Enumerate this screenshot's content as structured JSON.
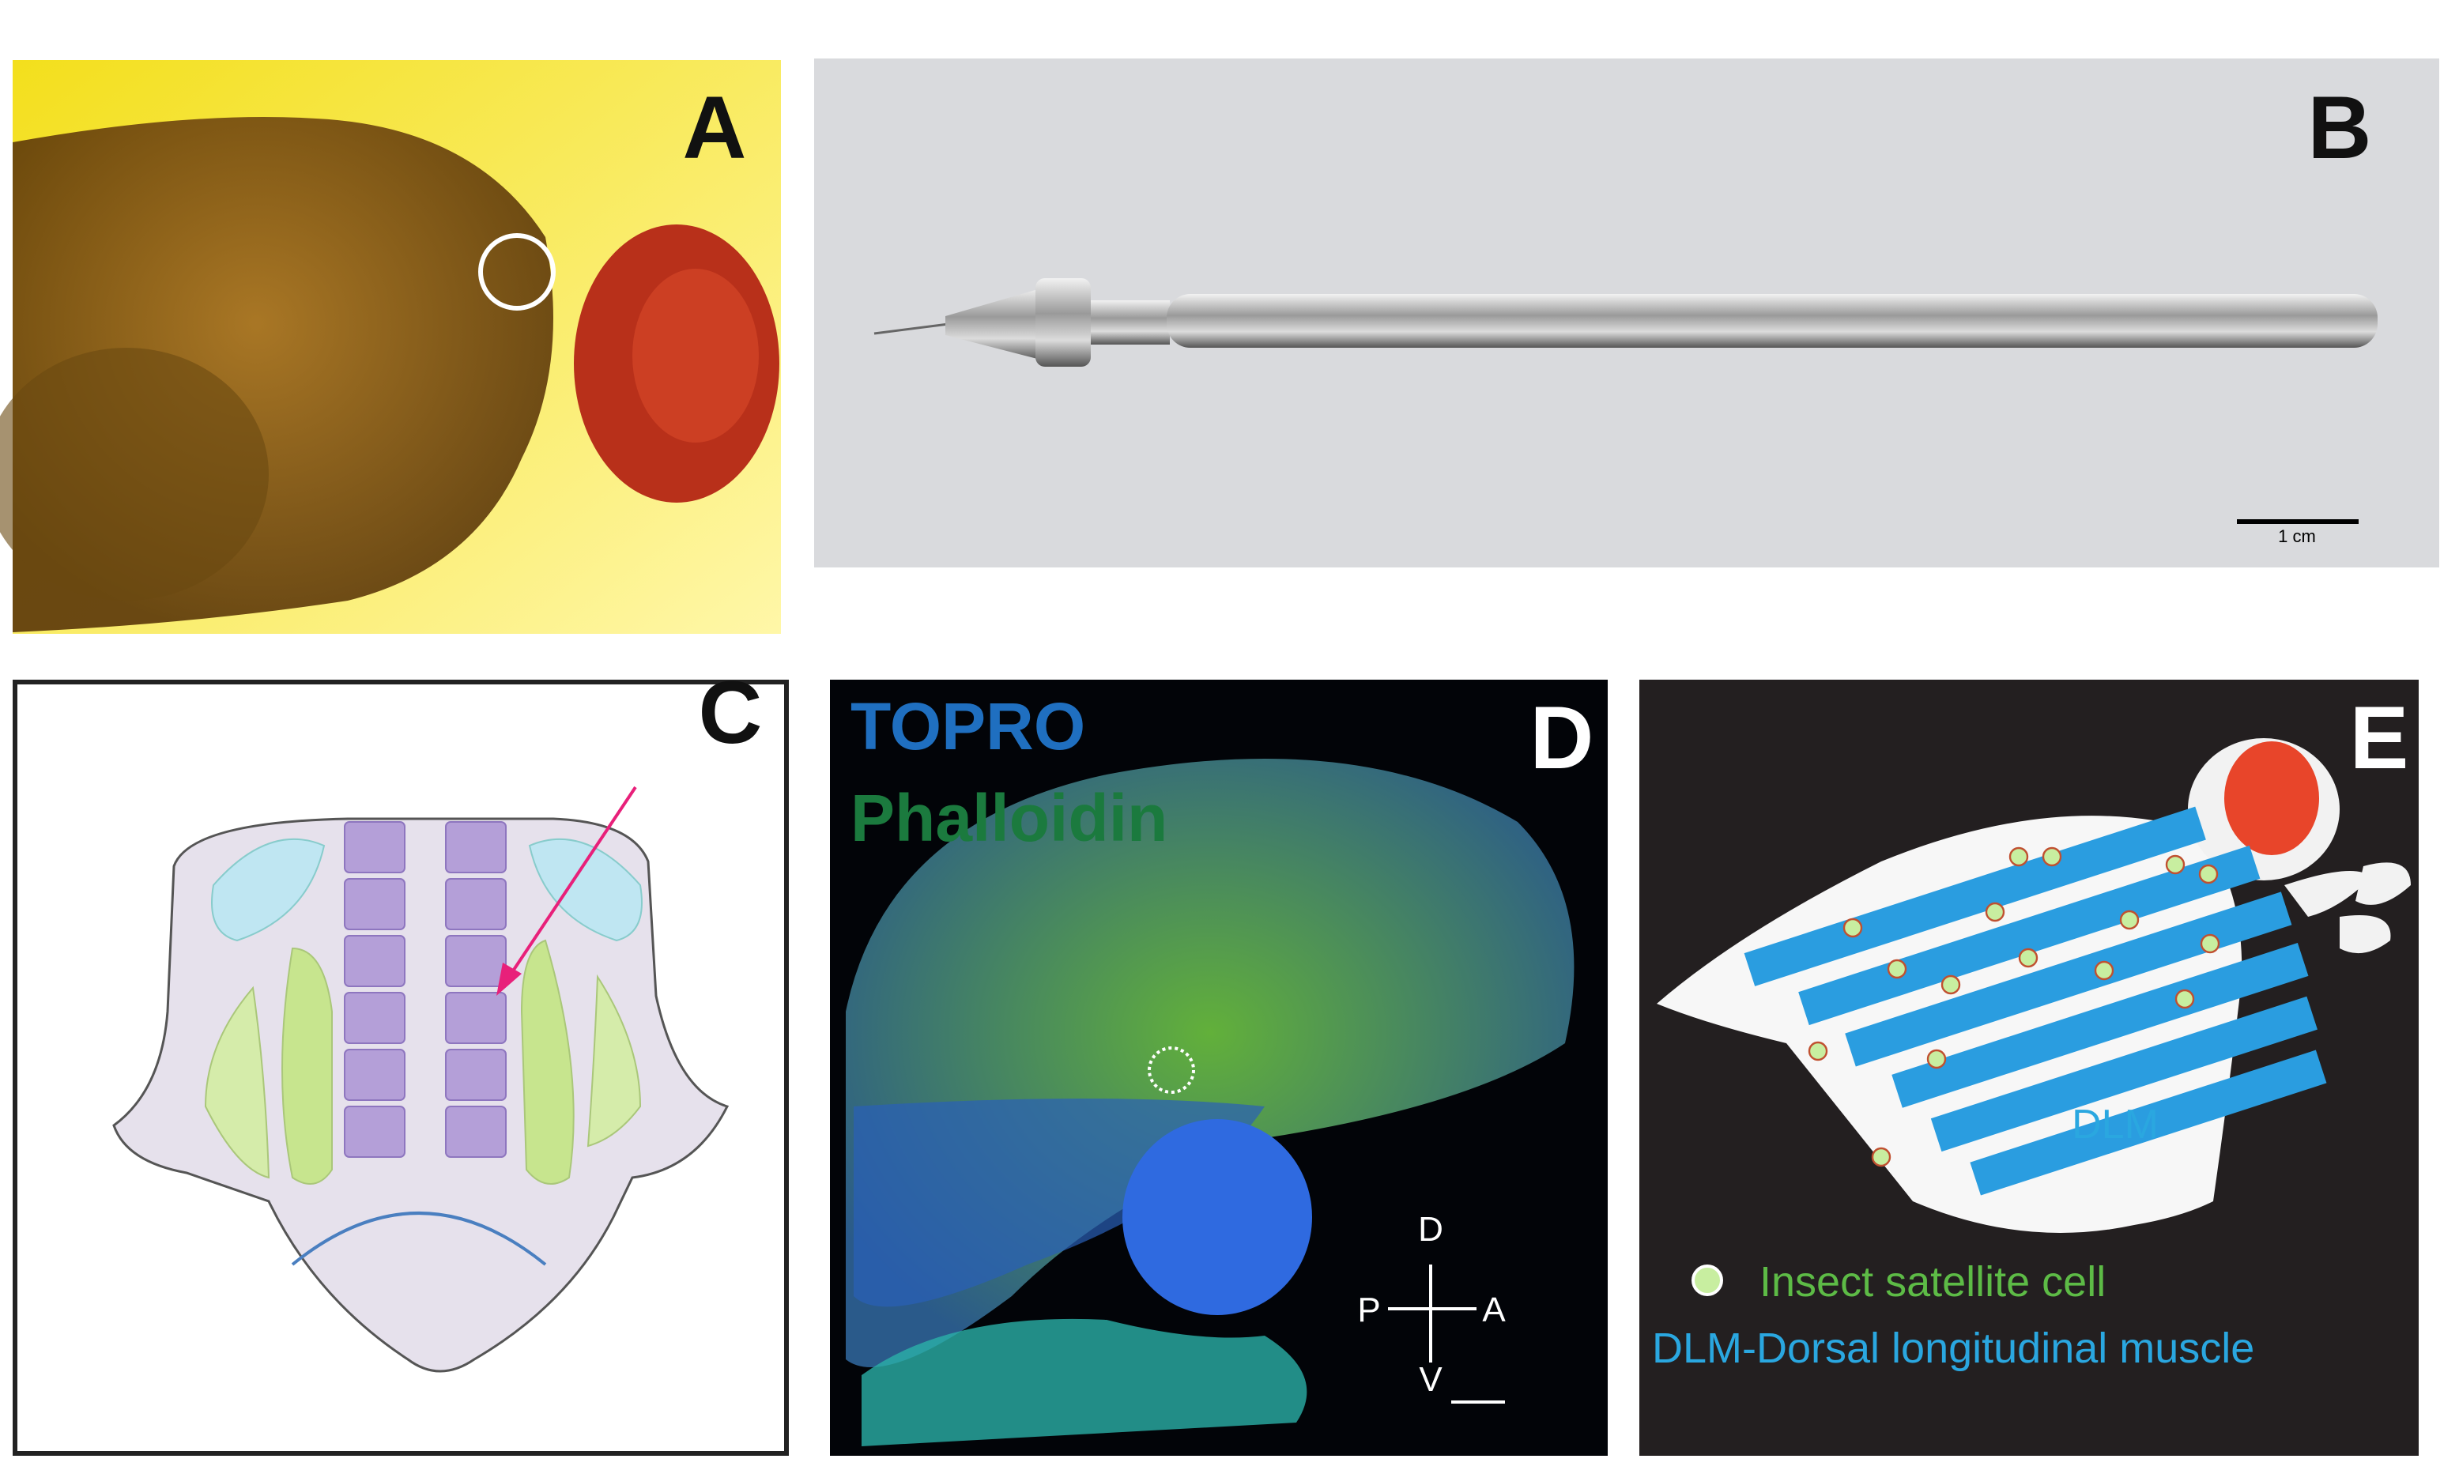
{
  "panels": [
    {
      "label": "A"
    },
    {
      "label": "B",
      "scale_bar": "1 cm"
    },
    {
      "label": "C"
    },
    {
      "label": "D",
      "stains": [
        "TOPRO",
        "Phalloidin"
      ],
      "axes": [
        "D",
        "P",
        "A",
        "V"
      ]
    },
    {
      "label": "E",
      "muscle_label": "DLM",
      "legend": [
        "Insect satellite cell",
        "DLM-Dorsal longitudinal muscle"
      ]
    }
  ]
}
